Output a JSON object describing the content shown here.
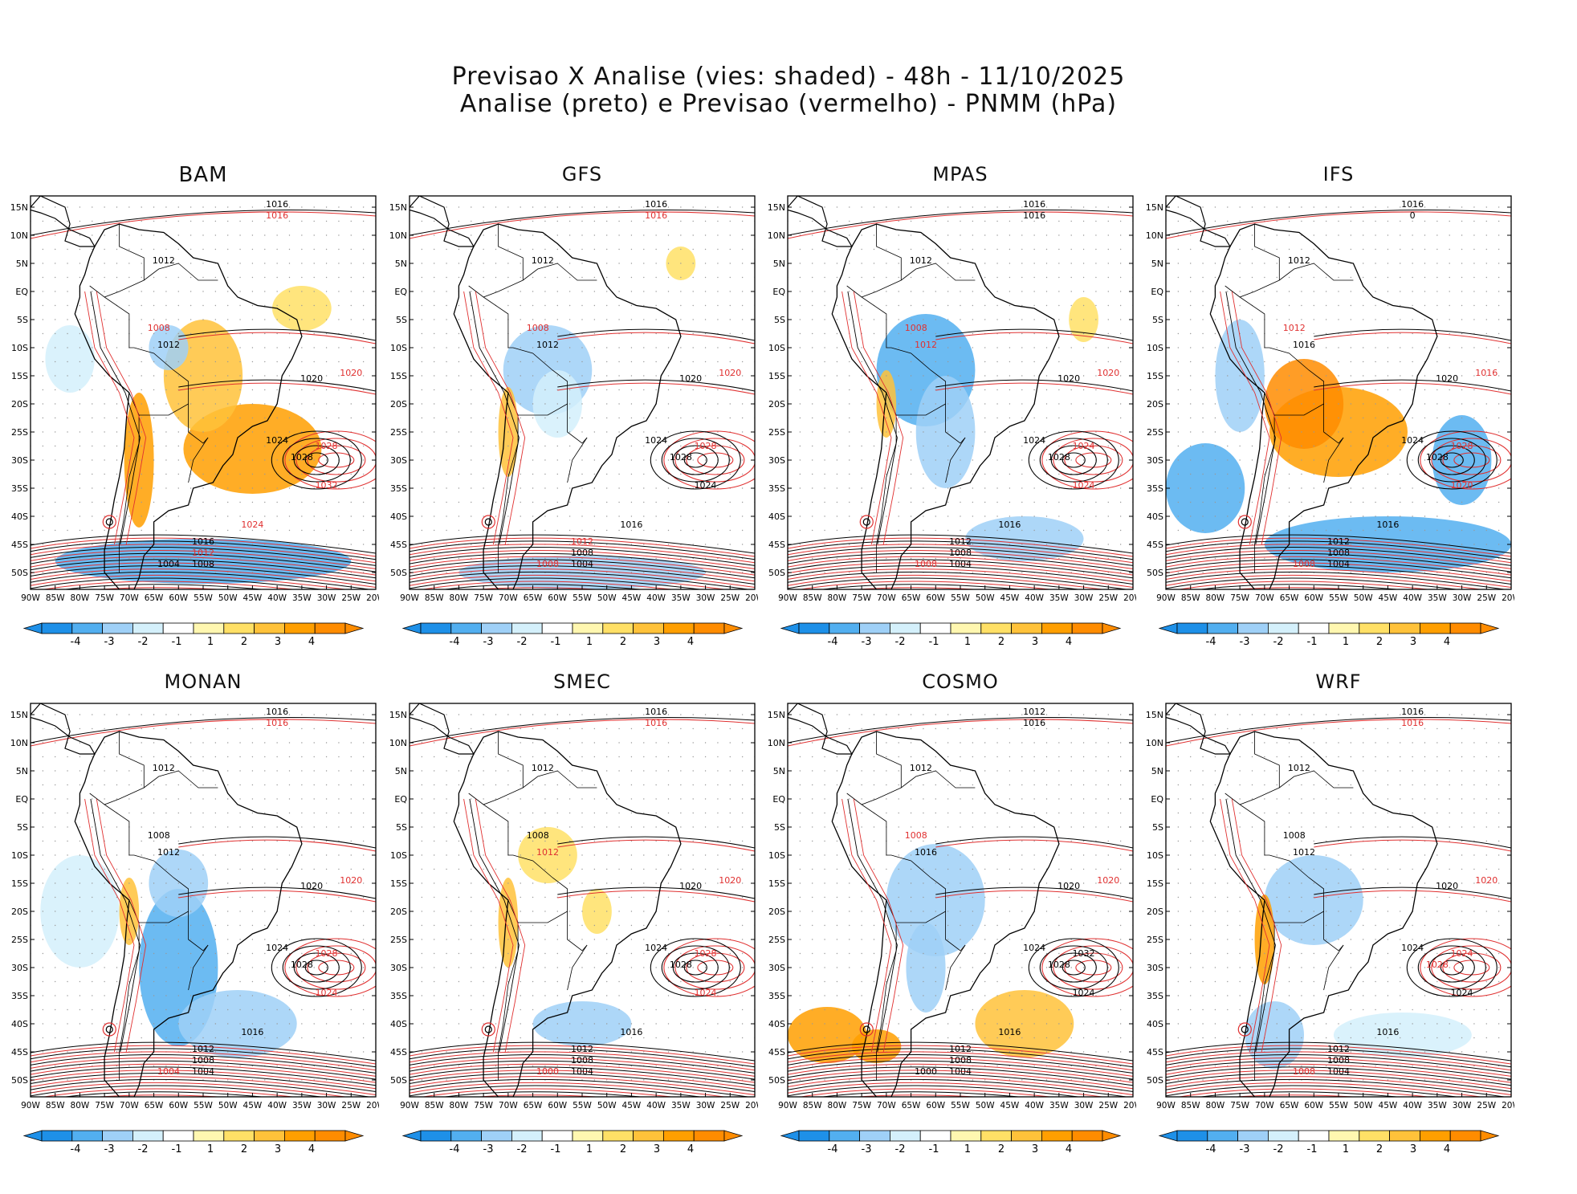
{
  "title_line1": "Previsao X Analise (vies: shaded) - 48h - 11/10/2025",
  "title_line2": "Analise (preto) e Previsao (vermelho) - PNMM (hPa)",
  "lat_labels": [
    "15N",
    "10N",
    "5N",
    "EQ",
    "5S",
    "10S",
    "15S",
    "20S",
    "25S",
    "30S",
    "35S",
    "40S",
    "45S",
    "50S"
  ],
  "lon_labels": [
    "90W",
    "85W",
    "80W",
    "75W",
    "70W",
    "65W",
    "60W",
    "55W",
    "50W",
    "45W",
    "40W",
    "35W",
    "30W",
    "25W",
    "20W"
  ],
  "colorbar": {
    "ticks": [
      "-4",
      "-3",
      "-2",
      "-1",
      "1",
      "2",
      "3",
      "4"
    ],
    "colors": [
      "#1e90e8",
      "#52aff0",
      "#9fd0f7",
      "#d4f0fb",
      "#ffffff",
      "#fff7b0",
      "#ffe066",
      "#ffc23a",
      "#ff9f00",
      "#ff8c00"
    ]
  },
  "colors": {
    "analysis": "#000000",
    "forecast": "#e03030",
    "border": "#000000"
  },
  "panels": [
    {
      "name": "BAM",
      "labels": [
        {
          "t": "1016",
          "c": "k"
        },
        {
          "t": "1016",
          "c": "r"
        },
        {
          "t": "1012",
          "c": "k"
        },
        {
          "t": "1008",
          "c": "r"
        },
        {
          "t": "1012",
          "c": "k"
        },
        {
          "t": "1020",
          "c": "k"
        },
        {
          "t": "1020",
          "c": "r"
        },
        {
          "t": "1024",
          "c": "k"
        },
        {
          "t": "1028",
          "c": "k"
        },
        {
          "t": "1028",
          "c": "r"
        },
        {
          "t": "1032",
          "c": "r"
        },
        {
          "t": "1024",
          "c": "r"
        },
        {
          "t": "1016",
          "c": "k"
        },
        {
          "t": "1012",
          "c": "r"
        },
        {
          "t": "1008",
          "c": "k"
        },
        {
          "t": "1004",
          "c": "k"
        }
      ]
    },
    {
      "name": "GFS",
      "labels": [
        {
          "t": "1016",
          "c": "k"
        },
        {
          "t": "1016",
          "c": "r"
        },
        {
          "t": "1012",
          "c": "k"
        },
        {
          "t": "1008",
          "c": "r"
        },
        {
          "t": "1012",
          "c": "k"
        },
        {
          "t": "1020",
          "c": "k"
        },
        {
          "t": "1020",
          "c": "r"
        },
        {
          "t": "1024",
          "c": "k"
        },
        {
          "t": "1028",
          "c": "k"
        },
        {
          "t": "1028",
          "c": "r"
        },
        {
          "t": "1024",
          "c": "k"
        },
        {
          "t": "1016",
          "c": "k"
        },
        {
          "t": "1012",
          "c": "r"
        },
        {
          "t": "1008",
          "c": "k"
        },
        {
          "t": "1004",
          "c": "k"
        },
        {
          "t": "1008",
          "c": "r"
        }
      ]
    },
    {
      "name": "MPAS",
      "labels": [
        {
          "t": "1016",
          "c": "k"
        },
        {
          "t": "1016",
          "c": "k"
        },
        {
          "t": "1012",
          "c": "k"
        },
        {
          "t": "1008",
          "c": "r"
        },
        {
          "t": "1012",
          "c": "r"
        },
        {
          "t": "1020",
          "c": "k"
        },
        {
          "t": "1020",
          "c": "r"
        },
        {
          "t": "1024",
          "c": "k"
        },
        {
          "t": "1028",
          "c": "k"
        },
        {
          "t": "1024",
          "c": "r"
        },
        {
          "t": "1024",
          "c": "r"
        },
        {
          "t": "1016",
          "c": "k"
        },
        {
          "t": "1012",
          "c": "k"
        },
        {
          "t": "1008",
          "c": "k"
        },
        {
          "t": "1004",
          "c": "k"
        },
        {
          "t": "1008",
          "c": "r"
        }
      ]
    },
    {
      "name": "IFS",
      "labels": [
        {
          "t": "1016",
          "c": "k"
        },
        {
          "t": "0",
          "c": "k"
        },
        {
          "t": "1012",
          "c": "k"
        },
        {
          "t": "1012",
          "c": "r"
        },
        {
          "t": "1016",
          "c": "k"
        },
        {
          "t": "1020",
          "c": "k"
        },
        {
          "t": "1016",
          "c": "r"
        },
        {
          "t": "1024",
          "c": "k"
        },
        {
          "t": "1028",
          "c": "k"
        },
        {
          "t": "1028",
          "c": "r"
        },
        {
          "t": "1020",
          "c": "r"
        },
        {
          "t": "1016",
          "c": "k"
        },
        {
          "t": "1012",
          "c": "k"
        },
        {
          "t": "1008",
          "c": "k"
        },
        {
          "t": "1004",
          "c": "k"
        },
        {
          "t": "1008",
          "c": "r"
        }
      ]
    },
    {
      "name": "MONAN",
      "labels": [
        {
          "t": "1016",
          "c": "k"
        },
        {
          "t": "1016",
          "c": "r"
        },
        {
          "t": "1012",
          "c": "k"
        },
        {
          "t": "1008",
          "c": "k"
        },
        {
          "t": "1012",
          "c": "k"
        },
        {
          "t": "1020",
          "c": "k"
        },
        {
          "t": "1020",
          "c": "r"
        },
        {
          "t": "1024",
          "c": "k"
        },
        {
          "t": "1028",
          "c": "k"
        },
        {
          "t": "1028",
          "c": "r"
        },
        {
          "t": "1024",
          "c": "r"
        },
        {
          "t": "1016",
          "c": "k"
        },
        {
          "t": "1012",
          "c": "k"
        },
        {
          "t": "1008",
          "c": "k"
        },
        {
          "t": "1004",
          "c": "k"
        },
        {
          "t": "1004",
          "c": "r"
        }
      ]
    },
    {
      "name": "SMEC",
      "labels": [
        {
          "t": "1016",
          "c": "k"
        },
        {
          "t": "1016",
          "c": "r"
        },
        {
          "t": "1012",
          "c": "k"
        },
        {
          "t": "1008",
          "c": "k"
        },
        {
          "t": "1012",
          "c": "r"
        },
        {
          "t": "1020",
          "c": "k"
        },
        {
          "t": "1020",
          "c": "r"
        },
        {
          "t": "1024",
          "c": "k"
        },
        {
          "t": "1028",
          "c": "k"
        },
        {
          "t": "1028",
          "c": "r"
        },
        {
          "t": "1024",
          "c": "r"
        },
        {
          "t": "1016",
          "c": "k"
        },
        {
          "t": "1012",
          "c": "k"
        },
        {
          "t": "1008",
          "c": "k"
        },
        {
          "t": "1004",
          "c": "k"
        },
        {
          "t": "1000",
          "c": "r"
        }
      ]
    },
    {
      "name": "COSMO",
      "labels": [
        {
          "t": "1012",
          "c": "k"
        },
        {
          "t": "1016",
          "c": "k"
        },
        {
          "t": "1012",
          "c": "k"
        },
        {
          "t": "1008",
          "c": "r"
        },
        {
          "t": "1016",
          "c": "k"
        },
        {
          "t": "1020",
          "c": "k"
        },
        {
          "t": "1020",
          "c": "r"
        },
        {
          "t": "1024",
          "c": "k"
        },
        {
          "t": "1028",
          "c": "k"
        },
        {
          "t": "1032",
          "c": "k"
        },
        {
          "t": "1024",
          "c": "k"
        },
        {
          "t": "1016",
          "c": "k"
        },
        {
          "t": "1012",
          "c": "k"
        },
        {
          "t": "1008",
          "c": "k"
        },
        {
          "t": "1004",
          "c": "k"
        },
        {
          "t": "1000",
          "c": "k"
        }
      ]
    },
    {
      "name": "WRF",
      "labels": [
        {
          "t": "1016",
          "c": "k"
        },
        {
          "t": "1016",
          "c": "r"
        },
        {
          "t": "1012",
          "c": "k"
        },
        {
          "t": "1008",
          "c": "k"
        },
        {
          "t": "1012",
          "c": "k"
        },
        {
          "t": "1020",
          "c": "k"
        },
        {
          "t": "1020",
          "c": "r"
        },
        {
          "t": "1024",
          "c": "k"
        },
        {
          "t": "1028",
          "c": "r"
        },
        {
          "t": "1024",
          "c": "r"
        },
        {
          "t": "1024",
          "c": "k"
        },
        {
          "t": "1016",
          "c": "k"
        },
        {
          "t": "1012",
          "c": "k"
        },
        {
          "t": "1008",
          "c": "k"
        },
        {
          "t": "1004",
          "c": "k"
        },
        {
          "t": "1008",
          "c": "r"
        }
      ]
    }
  ]
}
